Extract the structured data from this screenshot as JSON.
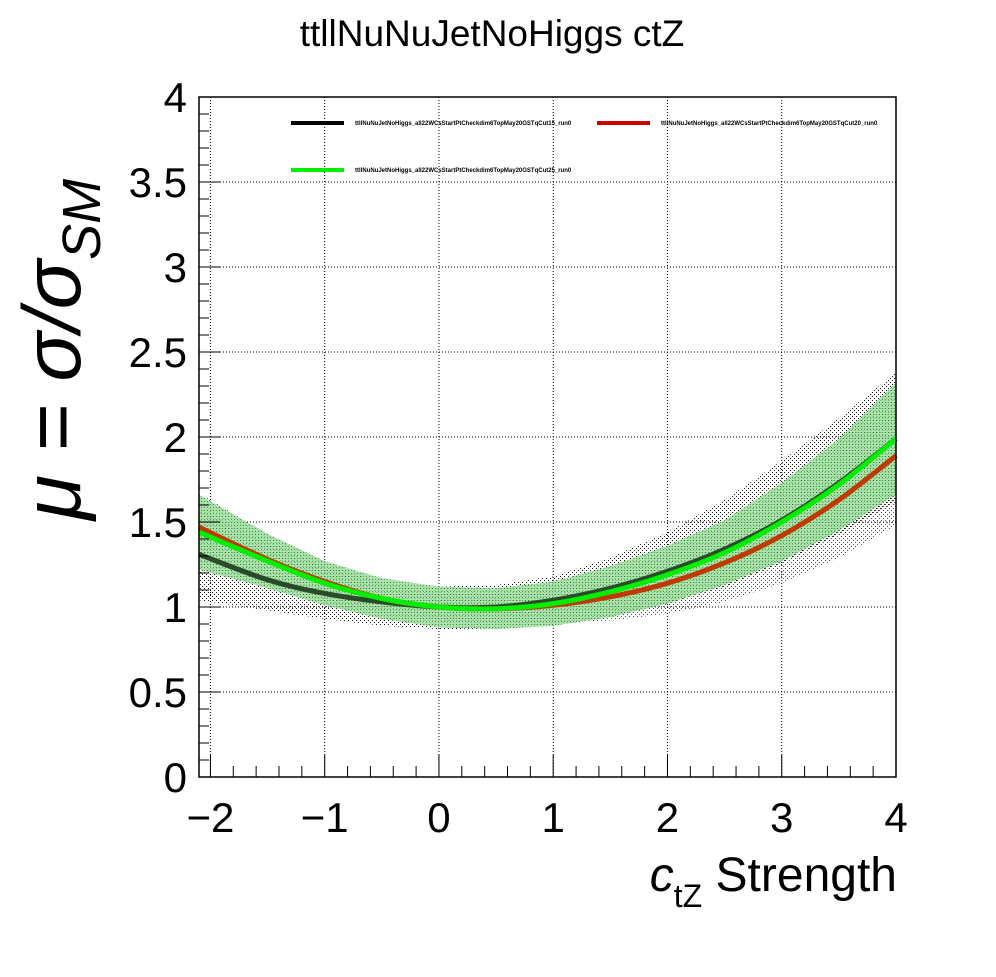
{
  "chart_data": {
    "type": "line",
    "title": "ttllNuNuJetNoHiggs ctZ",
    "xlabel": {
      "main": "c",
      "sub": "tZ",
      "suffix": " Strength"
    },
    "ylabel": {
      "mu": "μ",
      "eq": " = σ/σ",
      "sub": "SM"
    },
    "xlim": [
      -2.1,
      4
    ],
    "ylim": [
      0,
      4
    ],
    "x_ticks": [
      {
        "v": -2,
        "label": "−2"
      },
      {
        "v": -1,
        "label": "−1"
      },
      {
        "v": 0,
        "label": "0"
      },
      {
        "v": 1,
        "label": "1"
      },
      {
        "v": 2,
        "label": "2"
      },
      {
        "v": 3,
        "label": "3"
      },
      {
        "v": 4,
        "label": "4"
      }
    ],
    "y_ticks": [
      {
        "v": 0,
        "label": "0"
      },
      {
        "v": 0.5,
        "label": "0.5"
      },
      {
        "v": 1,
        "label": "1"
      },
      {
        "v": 1.5,
        "label": "1.5"
      },
      {
        "v": 2,
        "label": "2"
      },
      {
        "v": 2.5,
        "label": "2.5"
      },
      {
        "v": 3,
        "label": "3"
      },
      {
        "v": 3.5,
        "label": "3.5"
      },
      {
        "v": 4,
        "label": "4"
      }
    ],
    "grid": true,
    "legend_position": "top",
    "series": [
      {
        "name": "ttllNuNuJetNoHiggs_all22WCsStartPtCheckdim6TopMay20GSTqCut15_run0",
        "color": "#000000",
        "band_color": "#000000",
        "x": [
          -2.1,
          -1.5,
          -1,
          -0.5,
          0,
          0.5,
          1,
          1.5,
          2,
          2.5,
          3,
          3.5,
          4
        ],
        "y": [
          1.31,
          1.16,
          1.08,
          1.03,
          1.0,
          1.0,
          1.04,
          1.11,
          1.21,
          1.34,
          1.51,
          1.73,
          1.99
        ],
        "band_lo": [
          1.04,
          0.98,
          0.93,
          0.89,
          0.87,
          0.87,
          0.89,
          0.94,
          1.02,
          1.12,
          1.26,
          1.43,
          1.62
        ],
        "band_hi": [
          1.58,
          1.38,
          1.24,
          1.15,
          1.12,
          1.13,
          1.18,
          1.29,
          1.44,
          1.63,
          1.86,
          2.11,
          2.38
        ]
      },
      {
        "name": "ttllNuNuJetNoHiggs_all22WCsStartPtCheckdim6TopMay20GSTqCut20_run0",
        "color": "#cc0000",
        "band_color": "#cc0000",
        "x": [
          -2.1,
          -1.5,
          -1,
          -0.5,
          0,
          0.5,
          1,
          1.5,
          2,
          2.5,
          3,
          3.5,
          4
        ],
        "y": [
          1.47,
          1.28,
          1.15,
          1.05,
          1.0,
          0.99,
          1.01,
          1.06,
          1.14,
          1.26,
          1.42,
          1.63,
          1.89
        ],
        "band_lo": [
          1.27,
          1.13,
          1.03,
          0.96,
          0.92,
          0.9,
          0.9,
          0.92,
          0.96,
          1.03,
          1.14,
          1.29,
          1.48
        ],
        "band_hi": [
          1.67,
          1.43,
          1.27,
          1.14,
          1.08,
          1.08,
          1.12,
          1.2,
          1.32,
          1.49,
          1.7,
          1.97,
          2.3
        ]
      },
      {
        "name": "ttllNuNuJetNoHiggs_all22WCsStartPtCheckdim6TopMay20GSTqCut25_run0",
        "color": "#00ee00",
        "band_color": "#22aa22",
        "x": [
          -2.1,
          -1.5,
          -1,
          -0.5,
          0,
          0.5,
          1,
          1.5,
          2,
          2.5,
          3,
          3.5,
          4
        ],
        "y": [
          1.44,
          1.27,
          1.14,
          1.05,
          1.0,
          0.99,
          1.02,
          1.09,
          1.19,
          1.32,
          1.5,
          1.72,
          1.99
        ],
        "band_lo": [
          1.22,
          1.11,
          1.01,
          0.93,
          0.88,
          0.87,
          0.89,
          0.94,
          1.02,
          1.13,
          1.27,
          1.45,
          1.66
        ],
        "band_hi": [
          1.66,
          1.43,
          1.27,
          1.17,
          1.12,
          1.11,
          1.15,
          1.24,
          1.36,
          1.51,
          1.73,
          1.99,
          2.32
        ]
      }
    ]
  }
}
